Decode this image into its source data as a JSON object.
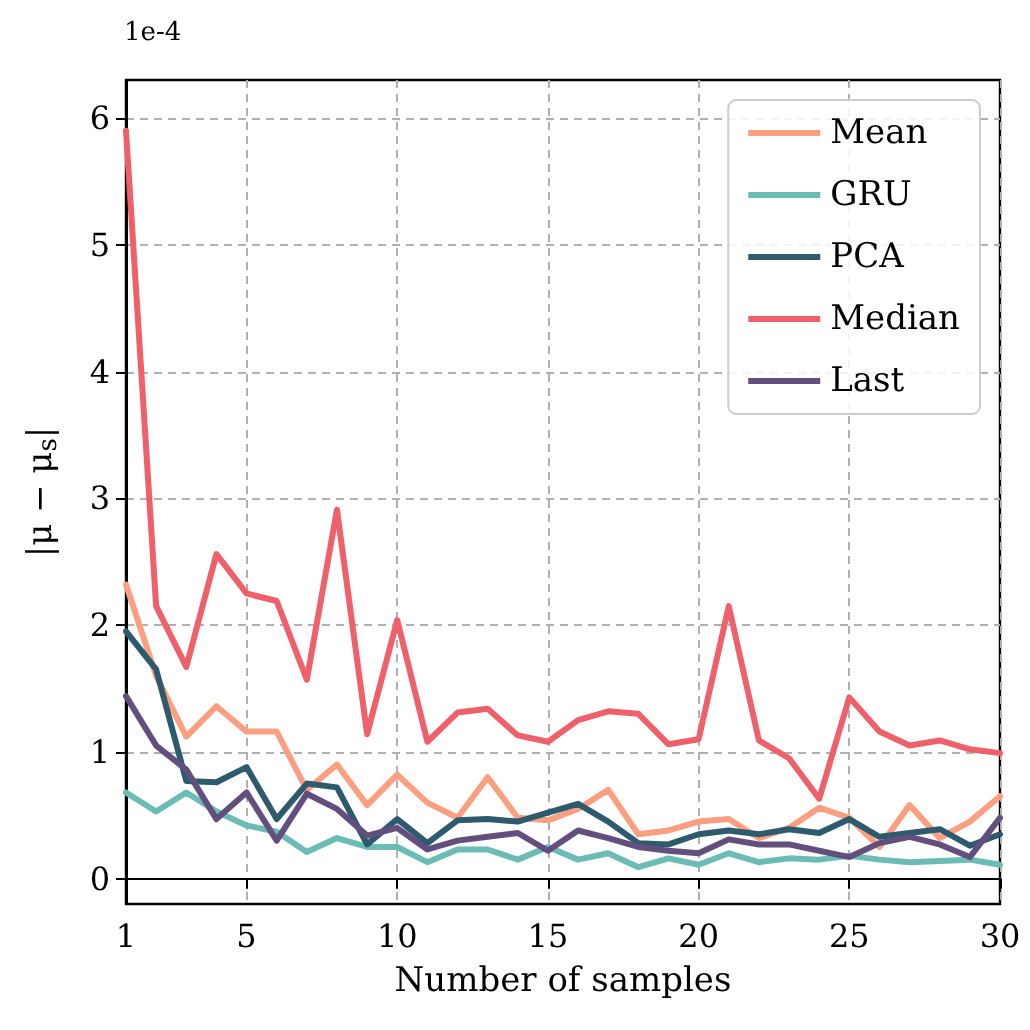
{
  "chart_data": {
    "type": "line",
    "xlabel": "Number of samples",
    "ylabel": "|μ − μ$_{s}$|",
    "annotations": [
      "1e-4"
    ],
    "x": [
      1,
      2,
      3,
      4,
      5,
      6,
      7,
      8,
      9,
      10,
      11,
      12,
      13,
      14,
      15,
      16,
      17,
      18,
      19,
      20,
      21,
      22,
      23,
      24,
      25,
      26,
      27,
      28,
      29,
      30
    ],
    "series": [
      {
        "name": "Mean",
        "color": "#fc9f80",
        "values": [
          2.32,
          1.6,
          1.12,
          1.36,
          1.16,
          1.16,
          0.7,
          0.9,
          0.58,
          0.82,
          0.6,
          0.48,
          0.8,
          0.48,
          0.46,
          0.55,
          0.7,
          0.35,
          0.38,
          0.45,
          0.47,
          0.32,
          0.4,
          0.56,
          0.48,
          0.25,
          0.58,
          0.32,
          0.45,
          0.65
        ]
      },
      {
        "name": "GRU",
        "color": "#6bbcb5",
        "values": [
          0.68,
          0.53,
          0.68,
          0.53,
          0.42,
          0.37,
          0.21,
          0.32,
          0.25,
          0.25,
          0.13,
          0.23,
          0.23,
          0.15,
          0.25,
          0.15,
          0.2,
          0.09,
          0.16,
          0.11,
          0.2,
          0.13,
          0.16,
          0.15,
          0.18,
          0.15,
          0.13,
          0.14,
          0.15,
          0.11
        ]
      },
      {
        "name": "PCA",
        "color": "#2e5a6e",
        "values": [
          1.95,
          1.65,
          0.77,
          0.76,
          0.88,
          0.47,
          0.75,
          0.72,
          0.27,
          0.47,
          0.28,
          0.46,
          0.47,
          0.45,
          0.52,
          0.59,
          0.45,
          0.28,
          0.27,
          0.35,
          0.38,
          0.35,
          0.39,
          0.36,
          0.47,
          0.33,
          0.36,
          0.39,
          0.26,
          0.35
        ]
      },
      {
        "name": "Median",
        "color": "#f0606a",
        "values": [
          5.9,
          2.15,
          1.67,
          2.56,
          2.25,
          2.19,
          1.57,
          2.91,
          1.14,
          2.04,
          1.08,
          1.31,
          1.34,
          1.13,
          1.08,
          1.25,
          1.32,
          1.3,
          1.06,
          1.1,
          2.15,
          1.09,
          0.95,
          0.63,
          1.43,
          1.16,
          1.05,
          1.09,
          1.02,
          0.99
        ]
      },
      {
        "name": "Last",
        "color": "#634f7d",
        "values": [
          1.44,
          1.05,
          0.86,
          0.47,
          0.68,
          0.3,
          0.67,
          0.55,
          0.34,
          0.4,
          0.23,
          0.3,
          0.33,
          0.36,
          0.22,
          0.38,
          0.32,
          0.25,
          0.22,
          0.2,
          0.31,
          0.27,
          0.27,
          0.22,
          0.17,
          0.28,
          0.33,
          0.27,
          0.17,
          0.48
        ]
      }
    ],
    "xlim": [
      1,
      30
    ],
    "xticks": [
      1,
      5,
      10,
      15,
      20,
      25,
      30
    ],
    "ylim": [
      -0.2,
      6.3
    ],
    "yticks": [
      0,
      1,
      2,
      3,
      4,
      5,
      6
    ],
    "grid": true,
    "legend": "top right",
    "marker": "none",
    "line_style": "solid"
  }
}
